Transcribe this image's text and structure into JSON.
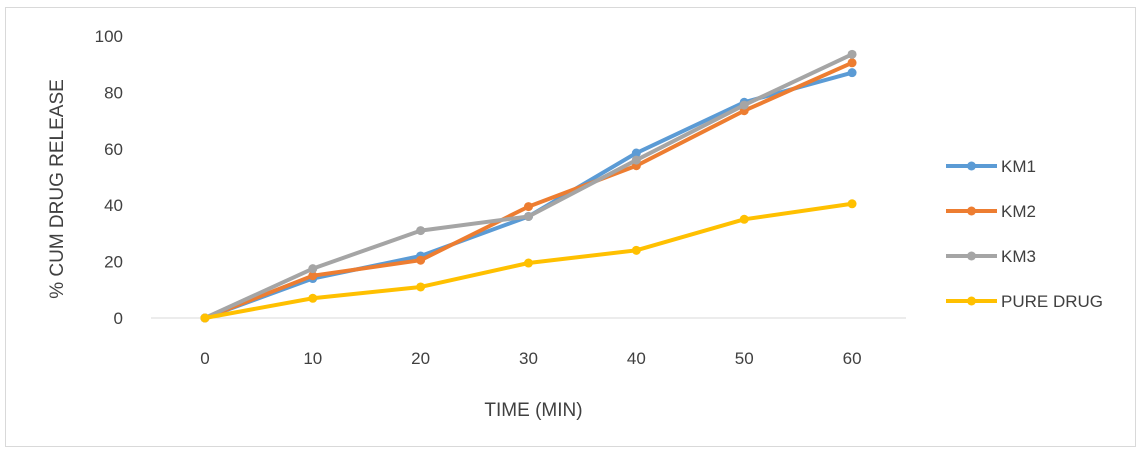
{
  "chart_data": {
    "type": "line",
    "title": "",
    "xlabel": "TIME (MIN)",
    "ylabel": "% CUM DRUG RELEASE",
    "x": [
      0,
      10,
      20,
      30,
      40,
      50,
      60
    ],
    "x_tick_labels": [
      "0",
      "10",
      "20",
      "30",
      "40",
      "50",
      "60"
    ],
    "ylim": [
      0,
      100
    ],
    "y_ticks": [
      0,
      20,
      40,
      60,
      80,
      100
    ],
    "y_tick_labels": [
      "0",
      "20",
      "40",
      "60",
      "80",
      "100"
    ],
    "grid": false,
    "legend_position": "right",
    "series": [
      {
        "name": "KM1",
        "color": "#5B9BD5",
        "values": [
          0,
          14,
          22,
          36,
          58.5,
          76.5,
          87
        ]
      },
      {
        "name": "KM2",
        "color": "#ED7D31",
        "values": [
          0,
          15,
          20.5,
          39.5,
          54,
          73.5,
          90.5
        ]
      },
      {
        "name": "KM3",
        "color": "#A5A5A5",
        "values": [
          0,
          17.5,
          31,
          36,
          56,
          75.5,
          93.5
        ]
      },
      {
        "name": "PURE DRUG",
        "color": "#FFC000",
        "values": [
          0,
          7,
          11,
          19.5,
          24,
          35,
          40.5
        ]
      }
    ]
  }
}
